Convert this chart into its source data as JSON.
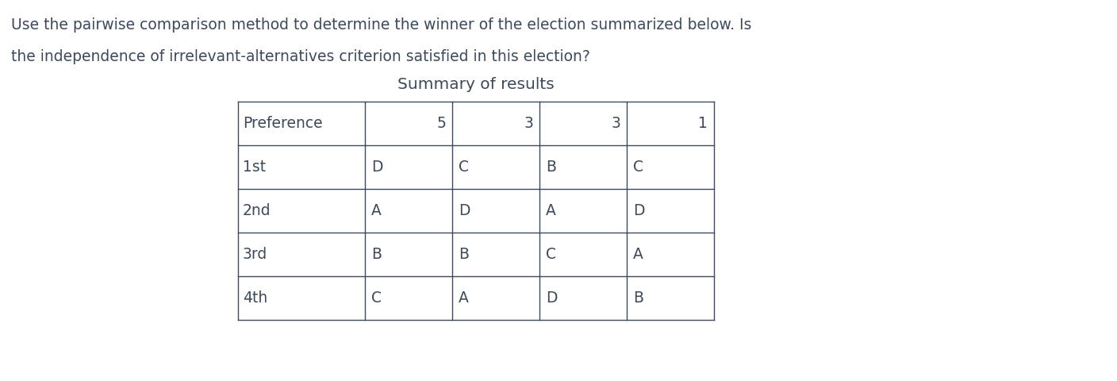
{
  "title_line1": "Use the pairwise comparison method to determine the winner of the election summarized below. Is",
  "title_line2": "the independence of irrelevant-alternatives criterion satisfied in this election?",
  "table_title": "Summary of results",
  "col_headers": [
    "Preference",
    "5",
    "3",
    "3",
    "1"
  ],
  "rows": [
    [
      "1st",
      "D",
      "C",
      "B",
      "C"
    ],
    [
      "2nd",
      "A",
      "D",
      "A",
      "D"
    ],
    [
      "3rd",
      "B",
      "B",
      "C",
      "A"
    ],
    [
      "4th",
      "C",
      "A",
      "D",
      "B"
    ]
  ],
  "text_color": "#3d4a5c",
  "table_line_color": "#3d4a5c",
  "background_color": "#ffffff",
  "font_size_body": 13.5,
  "font_size_table_title": 14.5
}
